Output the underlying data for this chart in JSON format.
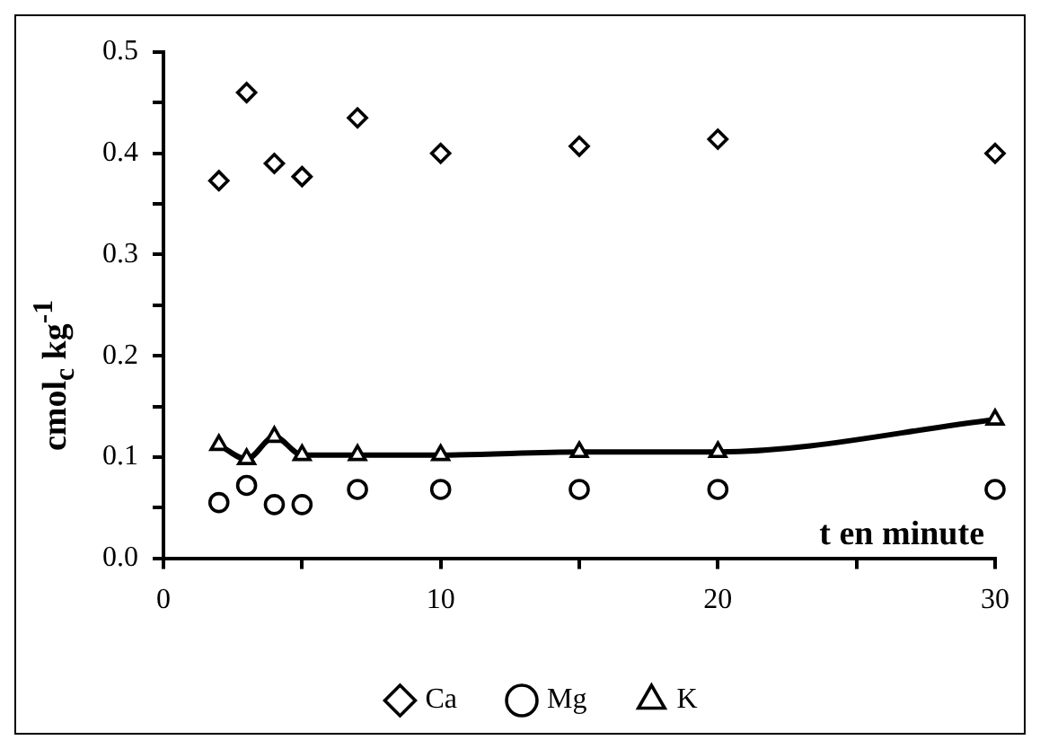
{
  "chart_data": {
    "type": "scatter",
    "xlabel": "t en minute",
    "ylabel": "cmol$_{c}$ kg$^{-1}$",
    "x": [
      2,
      3,
      4,
      5,
      7,
      10,
      15,
      20,
      30
    ],
    "series": [
      {
        "name": "Ca",
        "type": "scatter",
        "marker": "diamond",
        "color": "#000000",
        "values": [
          0.373,
          0.46,
          0.39,
          0.377,
          0.435,
          0.4,
          0.407,
          0.414,
          0.4
        ]
      },
      {
        "name": "Mg",
        "type": "scatter",
        "marker": "circle",
        "color": "#000000",
        "values": [
          0.055,
          0.072,
          0.053,
          0.053,
          0.068,
          0.068,
          0.068,
          0.068,
          0.068
        ]
      },
      {
        "name": "K",
        "type": "line",
        "marker": "triangle",
        "line_style": "solid",
        "color": "#000000",
        "values": [
          0.112,
          0.098,
          0.12,
          0.102,
          0.102,
          0.102,
          0.105,
          0.105,
          0.137
        ]
      }
    ],
    "xlim": [
      0,
      30
    ],
    "xticks": [
      0,
      {
        "value": 5,
        "label": null
      },
      10,
      {
        "value": 15,
        "label": null
      },
      20,
      {
        "value": 25,
        "label": null
      },
      30
    ],
    "ylim": [
      0,
      0.5
    ],
    "yticks": [
      "0.0",
      {
        "value": 0.05,
        "label": null
      },
      0.1,
      {
        "value": 0.15,
        "label": null
      },
      0.2,
      {
        "value": 0.25,
        "label": null
      },
      0.3,
      {
        "value": 0.35,
        "label": null
      },
      0.4,
      {
        "value": 0.45,
        "label": null
      },
      0.5
    ],
    "grid": false,
    "legend": "bottom"
  }
}
